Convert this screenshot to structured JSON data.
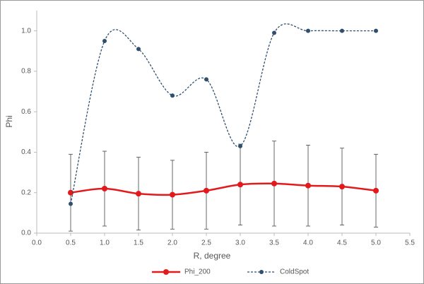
{
  "chart_data": {
    "type": "line",
    "x_label": "R, degree",
    "y_label": "Phi",
    "x": [
      0.5,
      1.0,
      1.5,
      2.0,
      2.5,
      3.0,
      3.5,
      4.0,
      4.5,
      5.0
    ],
    "series": [
      {
        "name": "Phi_200",
        "color": "#e31a1c",
        "values": [
          0.2,
          0.22,
          0.195,
          0.19,
          0.21,
          0.24,
          0.245,
          0.235,
          0.23,
          0.21
        ],
        "errors": [
          0.19,
          0.185,
          0.18,
          0.17,
          0.19,
          0.2,
          0.21,
          0.2,
          0.19,
          0.18
        ]
      },
      {
        "name": "ColdSpot",
        "color": "#2f4f6f",
        "dashed": true,
        "values": [
          0.145,
          0.95,
          0.91,
          0.68,
          0.76,
          0.43,
          0.99,
          1.0,
          1.0,
          1.0
        ]
      }
    ],
    "xlim": [
      0,
      5.5
    ],
    "xticks": [
      {
        "value": 0,
        "label": "0.0"
      },
      0.5,
      {
        "value": 1,
        "label": "1.0"
      },
      1.5,
      {
        "value": 2,
        "label": "2.0"
      },
      2.5,
      {
        "value": 3,
        "label": "3.0"
      },
      3.5,
      {
        "value": 4,
        "label": "4.0"
      },
      4.5,
      {
        "value": 5,
        "label": "5.0"
      },
      5.5
    ],
    "ylim": [
      0,
      1.1
    ],
    "yticks": [
      {
        "value": 0,
        "label": "0.0"
      },
      0.2,
      0.4,
      0.6,
      0.8,
      {
        "value": 1,
        "label": "1.0"
      }
    ],
    "smooth": true,
    "legend": "bottom"
  }
}
